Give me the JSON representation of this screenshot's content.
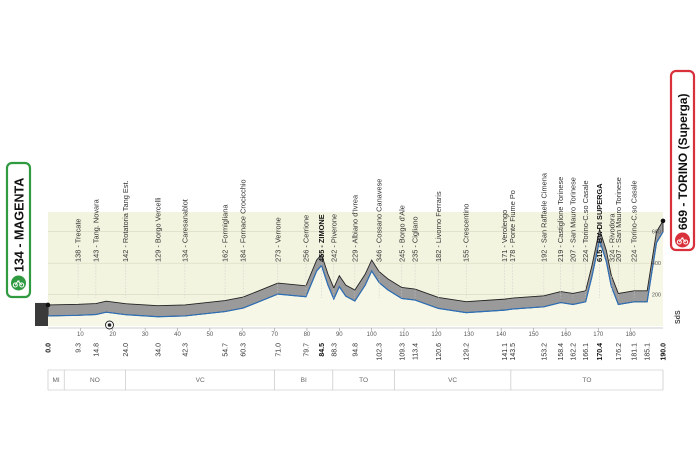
{
  "chart_data": {
    "type": "area",
    "start": {
      "label": "134 - MAGENTA",
      "km": 0.0,
      "altitude": 134
    },
    "finish": {
      "label": "669 - TORINO (Superga)",
      "km": 190.0,
      "altitude": 669
    },
    "xlim": [
      0,
      190
    ],
    "ylim": [
      0,
      700
    ],
    "altitude_ticks": [
      200,
      400,
      600
    ],
    "sds_label": "SdS",
    "profile": [
      {
        "km": 0,
        "alt": 134
      },
      {
        "km": 9.3,
        "alt": 138
      },
      {
        "km": 14.8,
        "alt": 143
      },
      {
        "km": 18,
        "alt": 158
      },
      {
        "km": 24.0,
        "alt": 142
      },
      {
        "km": 34.0,
        "alt": 129
      },
      {
        "km": 42.3,
        "alt": 134
      },
      {
        "km": 54.7,
        "alt": 162
      },
      {
        "km": 60.3,
        "alt": 184
      },
      {
        "km": 71.0,
        "alt": 273
      },
      {
        "km": 79.7,
        "alt": 256
      },
      {
        "km": 83,
        "alt": 420
      },
      {
        "km": 84.5,
        "alt": 455
      },
      {
        "km": 86.5,
        "alt": 330
      },
      {
        "km": 88.3,
        "alt": 242
      },
      {
        "km": 90,
        "alt": 320
      },
      {
        "km": 92,
        "alt": 260
      },
      {
        "km": 94.8,
        "alt": 229
      },
      {
        "km": 98,
        "alt": 330
      },
      {
        "km": 100,
        "alt": 420
      },
      {
        "km": 102.3,
        "alt": 346
      },
      {
        "km": 105,
        "alt": 300
      },
      {
        "km": 109.3,
        "alt": 245
      },
      {
        "km": 113.4,
        "alt": 235
      },
      {
        "km": 120.6,
        "alt": 182
      },
      {
        "km": 129.2,
        "alt": 155
      },
      {
        "km": 141.1,
        "alt": 171
      },
      {
        "km": 143.5,
        "alt": 178
      },
      {
        "km": 153.2,
        "alt": 192
      },
      {
        "km": 158.4,
        "alt": 219
      },
      {
        "km": 162.2,
        "alt": 207
      },
      {
        "km": 166.1,
        "alt": 224
      },
      {
        "km": 168,
        "alt": 380
      },
      {
        "km": 170.4,
        "alt": 615
      },
      {
        "km": 172.5,
        "alt": 480
      },
      {
        "km": 174,
        "alt": 324
      },
      {
        "km": 176.2,
        "alt": 207
      },
      {
        "km": 181.1,
        "alt": 224
      },
      {
        "km": 185.1,
        "alt": 224
      },
      {
        "km": 188,
        "alt": 600
      },
      {
        "km": 190,
        "alt": 669
      }
    ],
    "places": [
      {
        "name": "138 - Trecate",
        "km": 9.3
      },
      {
        "name": "143 - Tang. Novara",
        "km": 14.8
      },
      {
        "name": "142 - Rotatoria Tang Est.",
        "km": 24.0
      },
      {
        "name": "129 - Borgo Vercelli",
        "km": 34.0
      },
      {
        "name": "134 - Caresanablot",
        "km": 42.3
      },
      {
        "name": "162 - Formigliana",
        "km": 54.7
      },
      {
        "name": "184 - Fornace Crocicchio",
        "km": 60.3
      },
      {
        "name": "273 - Verrone",
        "km": 71.0
      },
      {
        "name": "256 - Cerrione",
        "km": 79.7
      },
      {
        "name": "455 - ZIMONE",
        "km": 84.5,
        "major": true
      },
      {
        "name": "242 - Piverone",
        "km": 88.3
      },
      {
        "name": "229 - Albiano d'Ivrea",
        "km": 94.8
      },
      {
        "name": "346 - Cossano Canavese",
        "km": 102.3
      },
      {
        "name": "245 - Borgo d'Ale",
        "km": 109.3
      },
      {
        "name": "235 - Cigliano",
        "km": 113.4
      },
      {
        "name": "182 - Livorno Ferraris",
        "km": 120.6
      },
      {
        "name": "155 - Crescentino",
        "km": 129.2
      },
      {
        "name": "171 - Verolengo",
        "km": 141.1
      },
      {
        "name": "178 - Ponte Fiume Po",
        "km": 143.5
      },
      {
        "name": "192 - San Raffaele Cimena",
        "km": 153.2
      },
      {
        "name": "219 - Castiglione Torinese",
        "km": 158.4
      },
      {
        "name": "207 - San Mauro Torinese",
        "km": 162.2
      },
      {
        "name": "224 - Torino-C.so Casale",
        "km": 166.1
      },
      {
        "name": "615 - BV. DI SUPERGA",
        "km": 170.4,
        "major": true
      },
      {
        "name": "324 - Rivodora",
        "km": 174.2
      },
      {
        "name": "207 - San Mauro Torinese",
        "km": 176.2
      },
      {
        "name": "224 - Torino-C.so Casale",
        "km": 181.1
      }
    ],
    "km_labels": [
      {
        "text": "0.0",
        "km": 0.0,
        "major": true
      },
      {
        "text": "9.3",
        "km": 9.3
      },
      {
        "text": "14.8",
        "km": 14.8
      },
      {
        "text": "24.0",
        "km": 24.0
      },
      {
        "text": "34.0",
        "km": 34.0
      },
      {
        "text": "42.3",
        "km": 42.3
      },
      {
        "text": "54.7",
        "km": 54.7
      },
      {
        "text": "60.3",
        "km": 60.3
      },
      {
        "text": "71.0",
        "km": 71.0
      },
      {
        "text": "79.7",
        "km": 79.7
      },
      {
        "text": "84.5",
        "km": 84.5,
        "major": true
      },
      {
        "text": "88.3",
        "km": 88.3
      },
      {
        "text": "94.8",
        "km": 94.8
      },
      {
        "text": "102.3",
        "km": 102.3
      },
      {
        "text": "109.3",
        "km": 109.3
      },
      {
        "text": "113.4",
        "km": 113.4
      },
      {
        "text": "120.6",
        "km": 120.6
      },
      {
        "text": "129.2",
        "km": 129.2
      },
      {
        "text": "141.1",
        "km": 141.1
      },
      {
        "text": "143.5",
        "km": 143.5
      },
      {
        "text": "153.2",
        "km": 153.2
      },
      {
        "text": "158.4",
        "km": 158.4
      },
      {
        "text": "162.2",
        "km": 162.2
      },
      {
        "text": "166.1",
        "km": 166.1
      },
      {
        "text": "170.4",
        "km": 170.4,
        "major": true
      },
      {
        "text": "176.2",
        "km": 176.2
      },
      {
        "text": "181.1",
        "km": 181.1
      },
      {
        "text": "185.1",
        "km": 185.1
      },
      {
        "text": "190.0",
        "km": 190.0,
        "major": true
      }
    ],
    "km_ticks": [
      10,
      20,
      30,
      40,
      50,
      60,
      70,
      80,
      90,
      100,
      110,
      120,
      130,
      140,
      150,
      160,
      170,
      180
    ],
    "provinces": [
      {
        "code": "MI",
        "from": 0,
        "to": 5
      },
      {
        "code": "NO",
        "from": 5,
        "to": 24
      },
      {
        "code": "VC",
        "from": 24,
        "to": 70
      },
      {
        "code": "BI",
        "from": 70,
        "to": 88
      },
      {
        "code": "TO",
        "from": 88,
        "to": 107
      },
      {
        "code": "VC",
        "from": 107,
        "to": 143
      },
      {
        "code": "TO",
        "from": 143,
        "to": 190
      }
    ],
    "feed_zone_km": 19,
    "colors": {
      "profile_fill": "#9a9a9a",
      "profile_edge": "#222222",
      "road_line": "#2d6fb8",
      "ground": "#f3f4df",
      "start_frame": "#2f9a40",
      "finish_frame": "#d9313b"
    }
  }
}
